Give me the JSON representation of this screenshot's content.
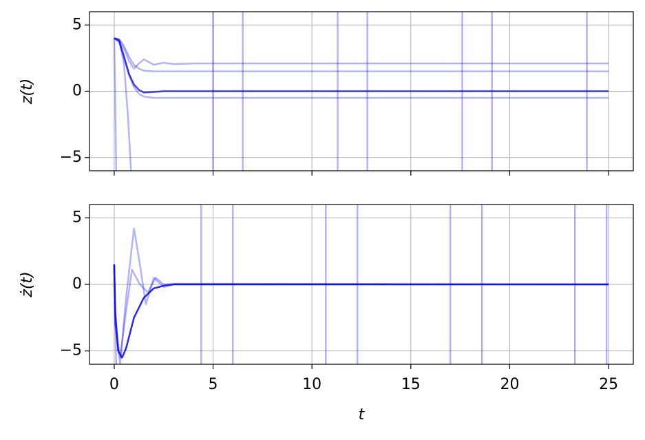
{
  "chart_data": [
    {
      "type": "line",
      "ylabel": "z(t)",
      "grid": true,
      "show_xtick_labels": false,
      "xlim": [
        -1.25,
        26.25
      ],
      "ylim": [
        -6,
        6
      ],
      "xticks": [
        0,
        5,
        10,
        15,
        20,
        25
      ],
      "yticks": [
        {
          "value": -5,
          "label": "−5"
        },
        0,
        5
      ],
      "vlines": [
        5.0,
        6.5,
        11.3,
        12.8,
        17.6,
        19.1,
        23.9
      ],
      "vline_color": "#0000ff",
      "vline_opacity": 0.3,
      "series": [
        {
          "color": "#0000ff",
          "opacity": 0.3,
          "x": [
            0,
            0.25,
            0.5,
            0.75,
            1,
            1.25,
            1.5,
            2,
            2.5,
            3,
            4,
            25
          ],
          "values": [
            4,
            3.9,
            3.2,
            2.3,
            1.7,
            2.1,
            2.4,
            2.0,
            2.15,
            2.05,
            2.1,
            2.1
          ]
        },
        {
          "color": "#0000ff",
          "opacity": 0.3,
          "x": [
            0,
            0.25,
            0.5,
            0.75,
            1,
            1.25,
            1.5,
            2,
            2.5,
            3,
            4,
            25
          ],
          "values": [
            4,
            3.9,
            3.4,
            2.6,
            2.0,
            1.7,
            1.55,
            1.5,
            1.5,
            1.5,
            1.5,
            1.5
          ]
        },
        {
          "color": "#0000ff",
          "opacity": 0.3,
          "x": [
            0,
            0.25,
            0.5,
            0.75,
            1,
            1.25,
            1.5,
            2,
            2.5,
            3,
            4,
            25
          ],
          "values": [
            4,
            3.7,
            2.5,
            1.2,
            0.3,
            -0.2,
            -0.4,
            -0.5,
            -0.5,
            -0.5,
            -0.5,
            -0.5
          ]
        },
        {
          "color": "#0000ff",
          "opacity": 0.3,
          "x": [
            0,
            0.05,
            0.1
          ],
          "values": [
            4,
            0,
            -6
          ]
        },
        {
          "color": "#0000ff",
          "opacity": 0.3,
          "x": [
            0,
            0.25,
            0.5,
            0.7,
            0.85
          ],
          "values": [
            4,
            3.9,
            2,
            -2,
            -6
          ]
        },
        {
          "color": "#0000ff",
          "opacity": 0.75,
          "x": [
            0,
            0.25,
            0.5,
            0.75,
            1,
            1.25,
            1.5,
            2,
            2.5,
            3,
            4,
            25
          ],
          "values": [
            4,
            3.8,
            2.6,
            1.3,
            0.5,
            0.1,
            -0.1,
            -0.05,
            0,
            0,
            0,
            0
          ]
        }
      ]
    },
    {
      "type": "line",
      "ylabel": "ż(t)",
      "xlabel": "t",
      "grid": true,
      "show_xtick_labels": true,
      "xlim": [
        -1.25,
        26.25
      ],
      "ylim": [
        -6,
        6
      ],
      "xticks": [
        0,
        5,
        10,
        15,
        20,
        25
      ],
      "yticks": [
        {
          "value": -5,
          "label": "−5"
        },
        0,
        5
      ],
      "vlines": [
        4.4,
        6.0,
        10.7,
        12.3,
        17.0,
        18.6,
        23.3,
        24.9
      ],
      "vline_color": "#0000ff",
      "vline_opacity": 0.3,
      "series": [
        {
          "color": "#0000ff",
          "opacity": 0.3,
          "x": [
            0,
            0.05,
            0.3,
            0.6,
            1.0,
            1.3,
            1.6,
            2,
            2.5,
            3,
            25
          ],
          "values": [
            1.5,
            -3,
            -6,
            -1,
            4.2,
            1.5,
            -1.5,
            0.5,
            -0.2,
            0,
            0
          ]
        },
        {
          "color": "#0000ff",
          "opacity": 0.3,
          "x": [
            0,
            0.05,
            0.3,
            0.6,
            0.9,
            1.3,
            1.7,
            2.1,
            2.5,
            3.2,
            25
          ],
          "values": [
            1.5,
            -3,
            -5.5,
            -2,
            1.1,
            0,
            -0.6,
            0.5,
            0,
            0.05,
            0
          ]
        },
        {
          "color": "#0000ff",
          "opacity": 0.3,
          "x": [
            0,
            0.1
          ],
          "values": [
            1.5,
            -6
          ]
        },
        {
          "color": "#0000ff",
          "opacity": 0.85,
          "x": [
            0,
            0.05,
            0.2,
            0.4,
            0.6,
            1,
            1.5,
            2,
            2.5,
            3,
            25
          ],
          "values": [
            1.5,
            -2,
            -5,
            -5.5,
            -4.8,
            -2.5,
            -1,
            -0.3,
            -0.1,
            0,
            0
          ]
        }
      ]
    }
  ]
}
